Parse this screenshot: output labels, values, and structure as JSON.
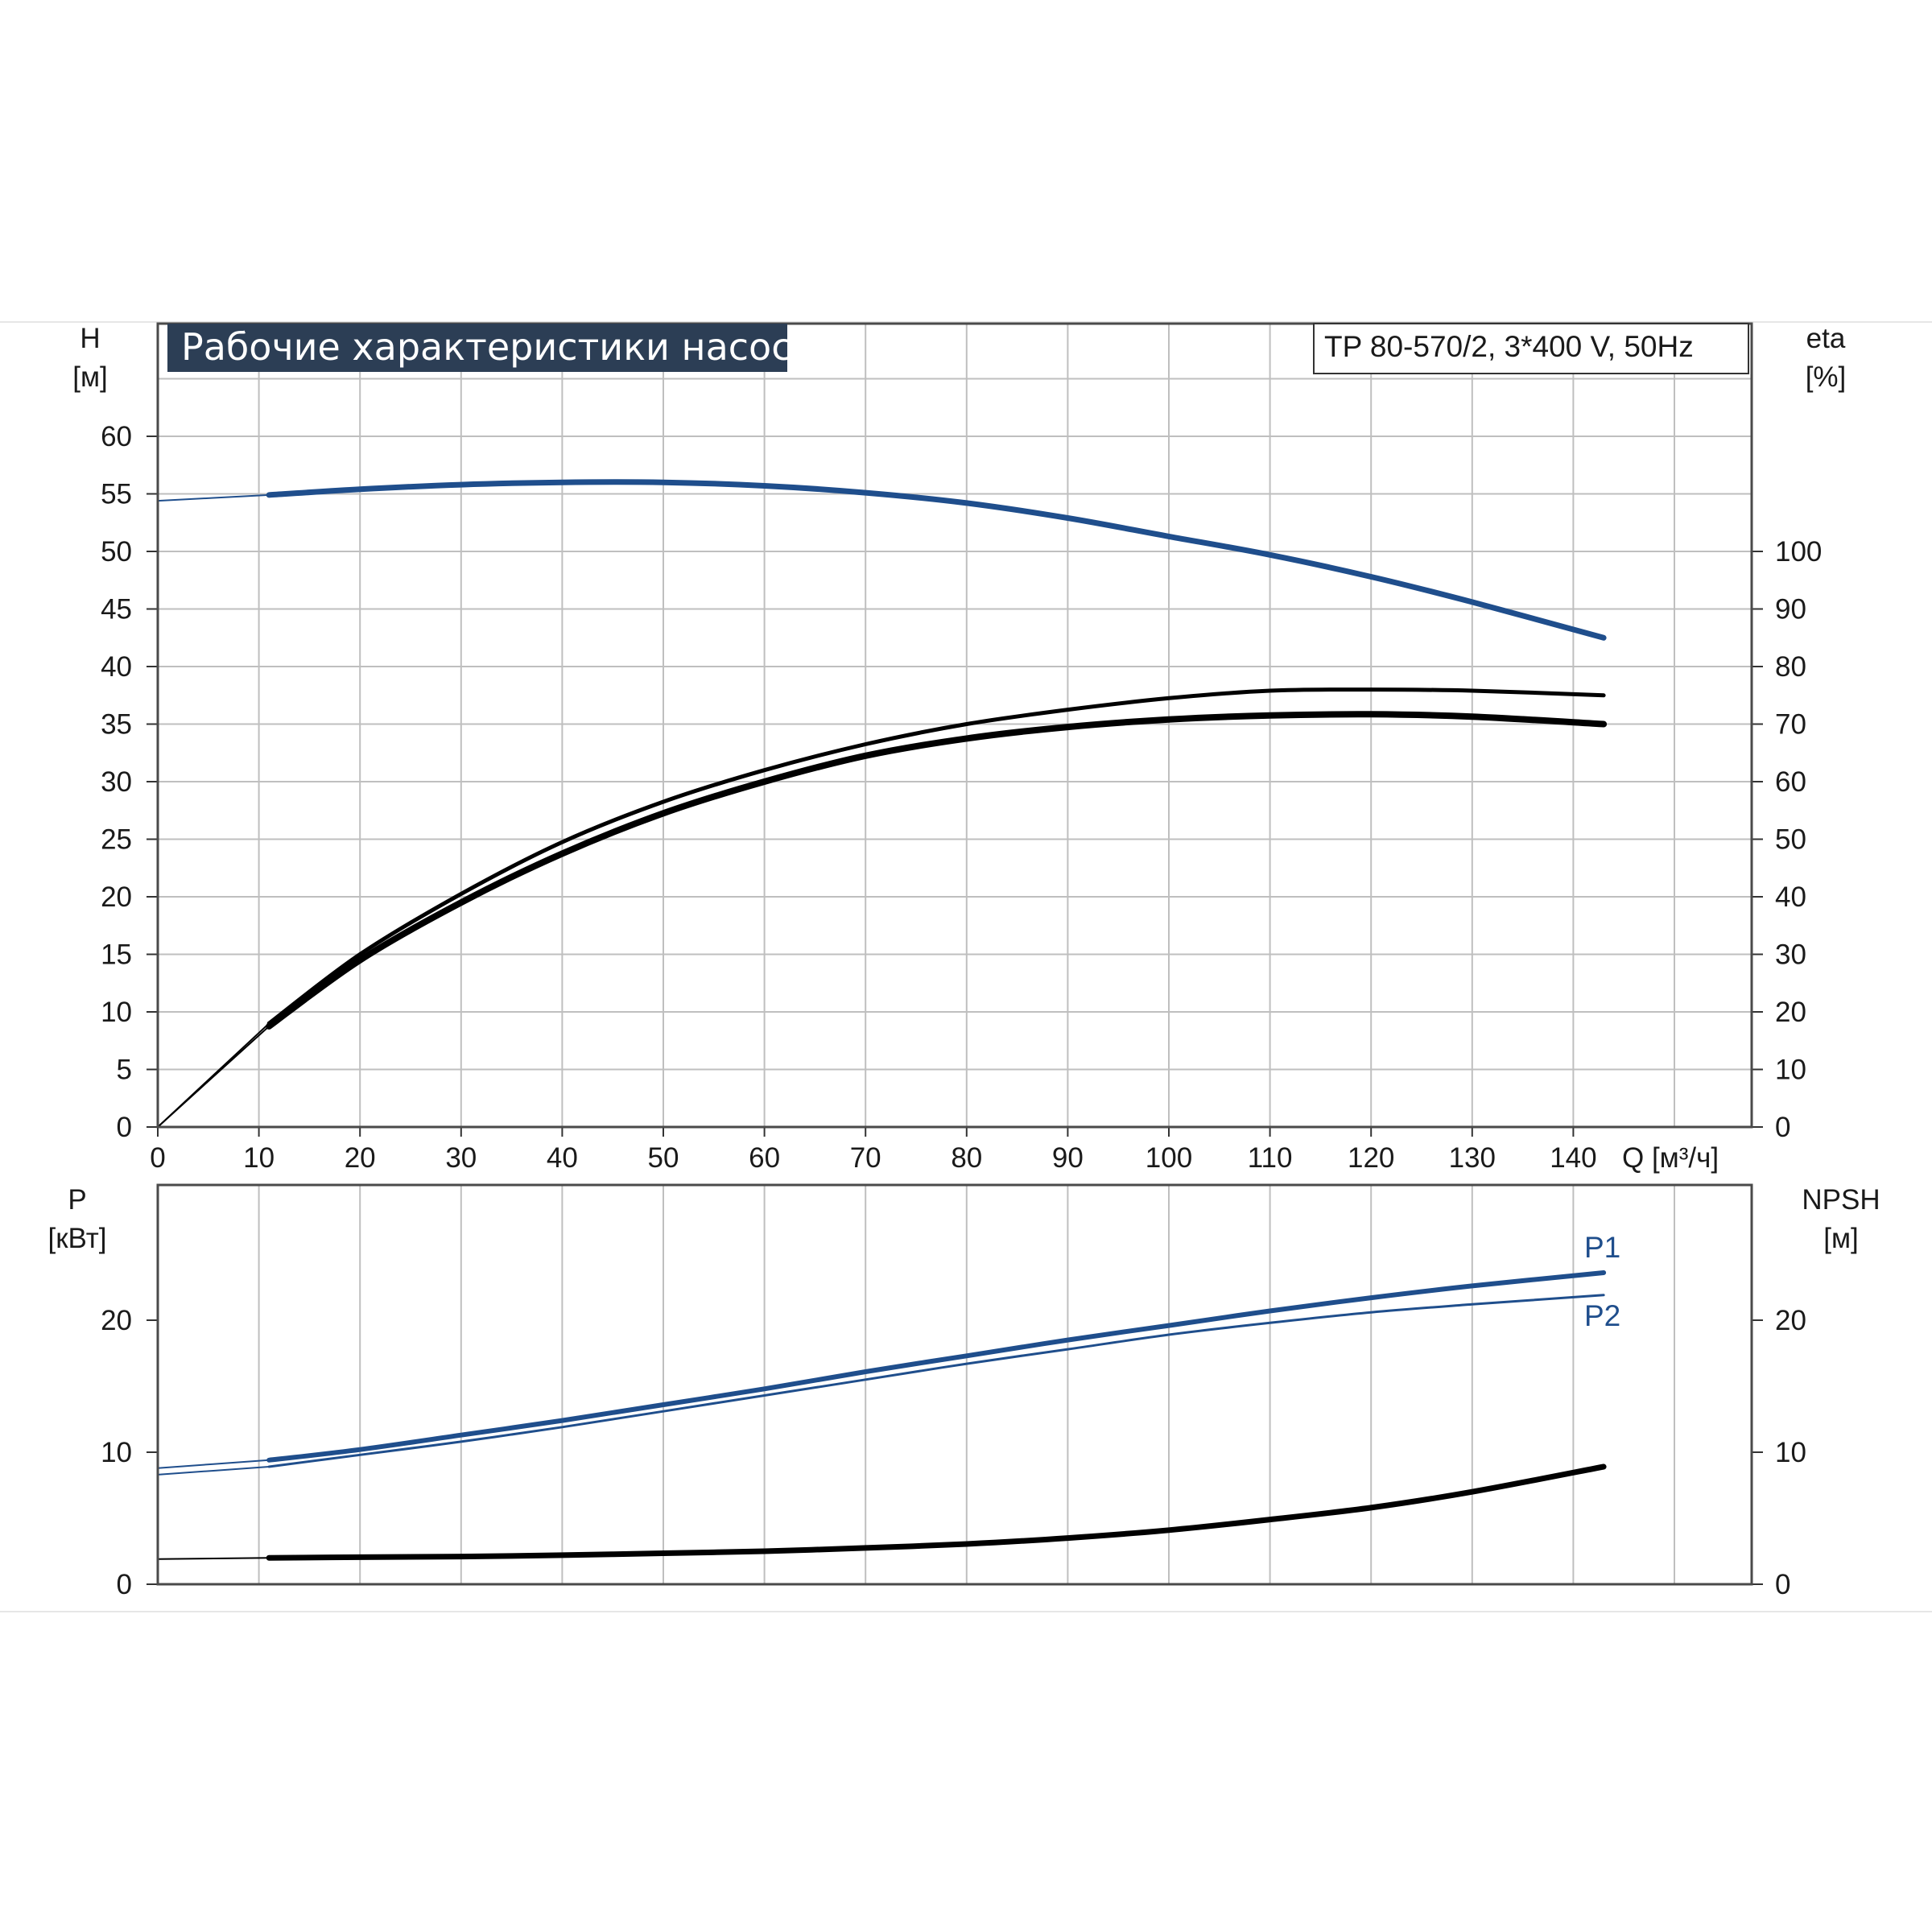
{
  "chart_data": [
    {
      "type": "line",
      "title": "Рабочие характеристики насоса",
      "model": "TP 80-570/2, 3*400 V, 50Hz",
      "xlabel": "Q [м³/ч]",
      "ylabel_left": "H\n[м]",
      "ylabel_right": "eta\n[%]",
      "xlim": [
        0,
        158
      ],
      "ylim_left": [
        0,
        68
      ],
      "ylim_right": [
        0,
        136
      ],
      "x_ticks": [
        0,
        10,
        20,
        30,
        40,
        50,
        60,
        70,
        80,
        90,
        100,
        110,
        120,
        130,
        140
      ],
      "y_ticks_left": [
        0,
        5,
        10,
        15,
        20,
        25,
        30,
        35,
        40,
        45,
        50,
        55,
        60
      ],
      "y_ticks_right": [
        0,
        10,
        20,
        30,
        40,
        50,
        60,
        70,
        80,
        90,
        100
      ],
      "grid": true,
      "series": [
        {
          "axis": "left",
          "color": "#1f4e8c",
          "points": [
            [
              0,
              54.4
            ],
            [
              11,
              54.9
            ],
            [
              20,
              55.4
            ],
            [
              30,
              55.8
            ],
            [
              40,
              56.0
            ],
            [
              50,
              56.0
            ],
            [
              60,
              55.7
            ],
            [
              70,
              55.1
            ],
            [
              80,
              54.2
            ],
            [
              90,
              52.9
            ],
            [
              100,
              51.3
            ],
            [
              110,
              49.7
            ],
            [
              120,
              47.8
            ],
            [
              130,
              45.6
            ],
            [
              143,
              42.5
            ]
          ]
        },
        {
          "axis": "right",
          "color": "#000000",
          "points": [
            [
              0,
              0
            ],
            [
              11,
              18.0
            ],
            [
              20,
              30.0
            ],
            [
              30,
              40.5
            ],
            [
              40,
              49.5
            ],
            [
              50,
              56.5
            ],
            [
              60,
              62.0
            ],
            [
              70,
              66.5
            ],
            [
              80,
              70.0
            ],
            [
              90,
              72.5
            ],
            [
              100,
              74.5
            ],
            [
              110,
              75.8
            ],
            [
              120,
              76.0
            ],
            [
              130,
              75.8
            ],
            [
              143,
              75.0
            ]
          ]
        },
        {
          "axis": "right",
          "color": "#000000",
          "points": [
            [
              0,
              0
            ],
            [
              11,
              17.5
            ],
            [
              20,
              29.0
            ],
            [
              30,
              39.0
            ],
            [
              40,
              47.5
            ],
            [
              50,
              54.5
            ],
            [
              60,
              60.0
            ],
            [
              70,
              64.5
            ],
            [
              80,
              67.5
            ],
            [
              90,
              69.5
            ],
            [
              100,
              70.8
            ],
            [
              110,
              71.5
            ],
            [
              120,
              71.7
            ],
            [
              130,
              71.3
            ],
            [
              143,
              70.0
            ]
          ]
        }
      ]
    },
    {
      "type": "line",
      "xlim": [
        0,
        158
      ],
      "ylabel_left": "P\n[кВт]",
      "ylabel_right": "NPSH\n[м]",
      "ylim_left": [
        0,
        30
      ],
      "ylim_right": [
        0,
        30
      ],
      "y_ticks_left": [
        0,
        10,
        20
      ],
      "y_ticks_right": [
        0,
        10,
        20
      ],
      "grid": true,
      "series": [
        {
          "name": "P1",
          "axis": "left",
          "color": "#1f4e8c",
          "points": [
            [
              0,
              8.8
            ],
            [
              11,
              9.4
            ],
            [
              20,
              10.2
            ],
            [
              30,
              11.3
            ],
            [
              40,
              12.4
            ],
            [
              50,
              13.6
            ],
            [
              60,
              14.8
            ],
            [
              70,
              16.1
            ],
            [
              80,
              17.3
            ],
            [
              90,
              18.5
            ],
            [
              100,
              19.6
            ],
            [
              110,
              20.7
            ],
            [
              120,
              21.7
            ],
            [
              130,
              22.6
            ],
            [
              143,
              23.6
            ]
          ]
        },
        {
          "name": "P2",
          "axis": "left",
          "color": "#1f4e8c",
          "points": [
            [
              0,
              8.3
            ],
            [
              11,
              8.9
            ],
            [
              20,
              9.8
            ],
            [
              30,
              10.8
            ],
            [
              40,
              11.9
            ],
            [
              50,
              13.1
            ],
            [
              60,
              14.3
            ],
            [
              70,
              15.5
            ],
            [
              80,
              16.7
            ],
            [
              90,
              17.8
            ],
            [
              100,
              18.9
            ],
            [
              110,
              19.8
            ],
            [
              120,
              20.6
            ],
            [
              130,
              21.2
            ],
            [
              143,
              21.9
            ]
          ]
        },
        {
          "axis": "right",
          "color": "#000000",
          "points": [
            [
              0,
              1.9
            ],
            [
              11,
              2.0
            ],
            [
              20,
              2.05
            ],
            [
              30,
              2.1
            ],
            [
              40,
              2.2
            ],
            [
              50,
              2.35
            ],
            [
              60,
              2.5
            ],
            [
              70,
              2.75
            ],
            [
              80,
              3.05
            ],
            [
              90,
              3.5
            ],
            [
              100,
              4.1
            ],
            [
              110,
              4.9
            ],
            [
              120,
              5.8
            ],
            [
              130,
              7.0
            ],
            [
              143,
              8.9
            ]
          ]
        }
      ]
    }
  ]
}
